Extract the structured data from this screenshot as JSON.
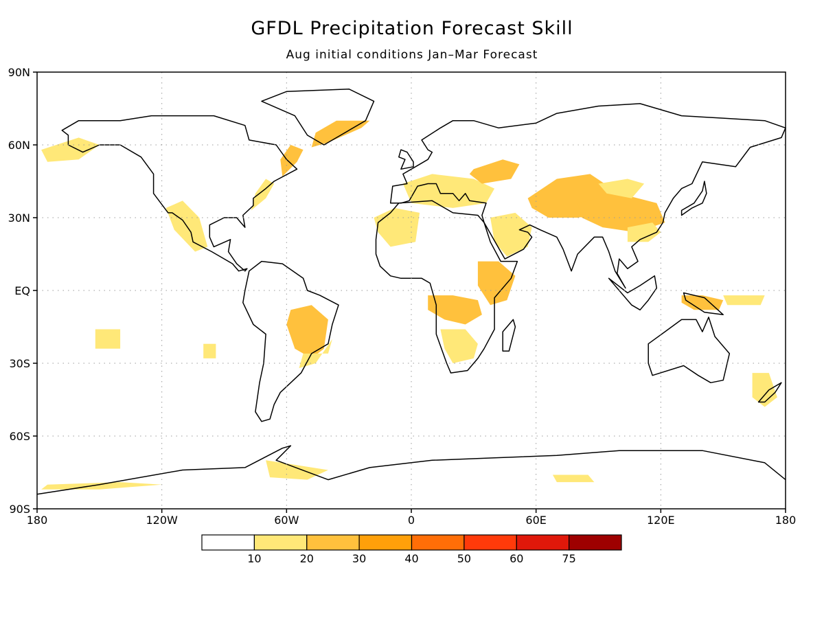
{
  "title": "GFDL Precipitation Forecast Skill",
  "subtitle": "Aug initial conditions   Jan–Mar Forecast",
  "map": {
    "lon_ticks": [
      {
        "lon": -180,
        "label": "180"
      },
      {
        "lon": -120,
        "label": "120W"
      },
      {
        "lon": -60,
        "label": "60W"
      },
      {
        "lon": 0,
        "label": "0"
      },
      {
        "lon": 60,
        "label": "60E"
      },
      {
        "lon": 120,
        "label": "120E"
      },
      {
        "lon": 180,
        "label": "180"
      }
    ],
    "lat_ticks": [
      {
        "lat": 90,
        "label": "90N"
      },
      {
        "lat": 60,
        "label": "60N"
      },
      {
        "lat": 30,
        "label": "30N"
      },
      {
        "lat": 0,
        "label": "EQ"
      },
      {
        "lat": -30,
        "label": "30S"
      },
      {
        "lat": -60,
        "label": "60S"
      },
      {
        "lat": -90,
        "label": "90S"
      }
    ],
    "skill_regions": [
      {
        "name": "north-america-west",
        "level": 1,
        "lons": [
          -178,
          -160,
          -150,
          -160,
          -175
        ],
        "lats": [
          58,
          63,
          60,
          54,
          53
        ]
      },
      {
        "name": "mexico",
        "level": 1,
        "lons": [
          -118,
          -110,
          -102,
          -98,
          -104,
          -114
        ],
        "lats": [
          34,
          37,
          30,
          18,
          16,
          25
        ]
      },
      {
        "name": "east-coast-us",
        "level": 1,
        "lons": [
          -77,
          -70,
          -66,
          -70,
          -75
        ],
        "lats": [
          33,
          38,
          44,
          46,
          40
        ]
      },
      {
        "name": "labrador",
        "level": 2,
        "lons": [
          -62,
          -55,
          -52,
          -58,
          -63
        ],
        "lats": [
          47,
          53,
          58,
          60,
          54
        ]
      },
      {
        "name": "greenland-south",
        "level": 2,
        "lons": [
          -48,
          -40,
          -24,
          -20,
          -36,
          -46
        ],
        "lats": [
          59,
          61,
          67,
          70,
          70,
          65
        ]
      },
      {
        "name": "brazil",
        "level": 2,
        "lons": [
          -58,
          -48,
          -40,
          -42,
          -48,
          -56,
          -60
        ],
        "lats": [
          -8,
          -6,
          -12,
          -24,
          -28,
          -24,
          -14
        ]
      },
      {
        "name": "south-brazil",
        "level": 1,
        "lons": [
          -52,
          -40,
          -38,
          -46,
          -54
        ],
        "lats": [
          -26,
          -26,
          -20,
          -30,
          -32
        ]
      },
      {
        "name": "west-africa-north",
        "level": 1,
        "lons": [
          -18,
          -8,
          4,
          2,
          -10,
          -16
        ],
        "lats": [
          30,
          34,
          32,
          20,
          18,
          24
        ]
      },
      {
        "name": "europe-med",
        "level": 1,
        "lons": [
          -4,
          10,
          30,
          40,
          36,
          20,
          0
        ],
        "lats": [
          44,
          48,
          46,
          42,
          36,
          34,
          36
        ]
      },
      {
        "name": "eastern-europe",
        "level": 2,
        "lons": [
          30,
          44,
          52,
          48,
          34,
          28
        ],
        "lats": [
          50,
          54,
          52,
          46,
          44,
          48
        ]
      },
      {
        "name": "arabia",
        "level": 1,
        "lons": [
          38,
          50,
          58,
          56,
          46,
          40
        ],
        "lats": [
          30,
          32,
          26,
          18,
          14,
          20
        ]
      },
      {
        "name": "east-africa",
        "level": 2,
        "lons": [
          32,
          42,
          50,
          46,
          38,
          32
        ],
        "lats": [
          12,
          12,
          6,
          -4,
          -6,
          2
        ]
      },
      {
        "name": "central-africa",
        "level": 2,
        "lons": [
          8,
          20,
          32,
          34,
          26,
          16,
          8
        ],
        "lats": [
          -2,
          -2,
          -4,
          -10,
          -14,
          -12,
          -8
        ]
      },
      {
        "name": "southern-africa",
        "level": 1,
        "lons": [
          14,
          26,
          32,
          30,
          20,
          16
        ],
        "lats": [
          -16,
          -16,
          -22,
          -28,
          -30,
          -24
        ]
      },
      {
        "name": "central-asia",
        "level": 2,
        "lons": [
          56,
          70,
          86,
          100,
          96,
          80,
          66,
          58
        ],
        "lats": [
          38,
          46,
          48,
          40,
          32,
          30,
          30,
          34
        ]
      },
      {
        "name": "tibet-china",
        "level": 2,
        "lons": [
          80,
          100,
          118,
          122,
          108,
          92,
          82
        ],
        "lats": [
          36,
          40,
          36,
          28,
          24,
          26,
          30
        ]
      },
      {
        "name": "siberia",
        "level": 1,
        "lons": [
          90,
          104,
          112,
          106,
          94
        ],
        "lats": [
          44,
          46,
          44,
          38,
          40
        ]
      },
      {
        "name": "south-china",
        "level": 1,
        "lons": [
          104,
          116,
          120,
          114,
          104
        ],
        "lats": [
          26,
          28,
          24,
          20,
          20
        ]
      },
      {
        "name": "new-guinea",
        "level": 2,
        "lons": [
          130,
          140,
          150,
          148,
          136,
          130
        ],
        "lats": [
          -2,
          -2,
          -4,
          -8,
          -8,
          -5
        ]
      },
      {
        "name": "west-pacific",
        "level": 1,
        "lons": [
          150,
          170,
          168,
          152
        ],
        "lats": [
          -2,
          -2,
          -6,
          -6
        ]
      },
      {
        "name": "tasman",
        "level": 1,
        "lons": [
          164,
          172,
          176,
          170,
          164
        ],
        "lats": [
          -34,
          -34,
          -44,
          -48,
          -44
        ]
      },
      {
        "name": "antarctic-peninsula",
        "level": 1,
        "lons": [
          -70,
          -55,
          -40,
          -50,
          -68
        ],
        "lats": [
          -70,
          -72,
          -74,
          -78,
          -77
        ]
      },
      {
        "name": "antarctica-west",
        "level": 1,
        "lons": [
          -175,
          -140,
          -120,
          -150,
          -178
        ],
        "lats": [
          -80,
          -79,
          -80,
          -82,
          -82
        ]
      },
      {
        "name": "antarctica-indian",
        "level": 1,
        "lons": [
          68,
          85,
          88,
          70
        ],
        "lats": [
          -76,
          -76,
          -79,
          -79
        ]
      },
      {
        "name": "south-atlantic",
        "level": 1,
        "lons": [
          -100,
          -94,
          -94,
          -100
        ],
        "lats": [
          -22,
          -22,
          -28,
          -28
        ]
      },
      {
        "name": "east-pacific",
        "level": 1,
        "lons": [
          -152,
          -140,
          -140,
          -152
        ],
        "lats": [
          -16,
          -16,
          -24,
          -24
        ]
      }
    ]
  },
  "colorbar": {
    "colors": [
      "#ffffff",
      "#ffe878",
      "#ffc13d",
      "#ffa00a",
      "#ff6e07",
      "#ff3a0a",
      "#e0180a",
      "#9e0000"
    ],
    "labels": [
      "10",
      "20",
      "30",
      "40",
      "50",
      "60",
      "75"
    ]
  }
}
